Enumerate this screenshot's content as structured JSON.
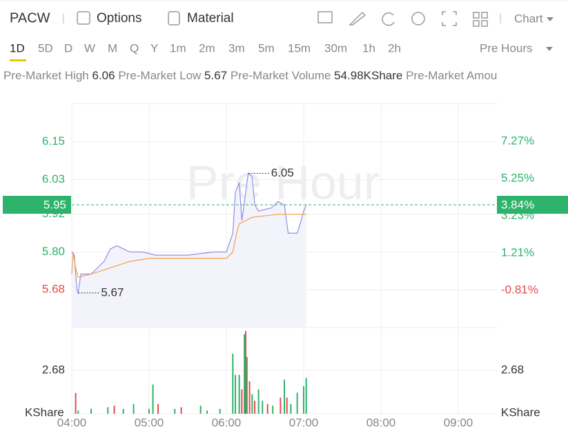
{
  "toolbar": {
    "symbol": "PACW",
    "options": "Options",
    "material": "Material",
    "chart_menu": "Chart"
  },
  "periods": [
    "1D",
    "5D",
    "D",
    "W",
    "M",
    "Q",
    "Y",
    "1m",
    "2m",
    "3m",
    "5m",
    "15m",
    "30m",
    "1h",
    "2h"
  ],
  "selected_period_index": 0,
  "session": "Pre Hours",
  "stats": [
    {
      "label": "Pre-Market High",
      "value": "6.06"
    },
    {
      "label": "Pre-Market Low",
      "value": "5.67"
    },
    {
      "label": "Pre-Market Volume",
      "value": "54.98KShare"
    },
    {
      "label": "Pre-Market Amou"
    }
  ],
  "chart_data": {
    "type": "line",
    "watermark": "Pre Hour",
    "grid": true,
    "up_color": "#2db36b",
    "down_color": "#e64a4a",
    "xlim": [
      "04:00",
      "09:30"
    ],
    "xticks": [
      "04:00",
      "05:00",
      "06:00",
      "07:00",
      "08:00",
      "09:00"
    ],
    "ylim": [
      5.56,
      6.272
    ],
    "yticks": [
      6.15,
      6.03,
      5.92,
      {
        "value": 5.8,
        "label": "5.80"
      },
      5.68
    ],
    "y2lim": [
      -2.83,
      9.33
    ],
    "y2ticks": [
      {
        "value": 7.27,
        "label": "7.27%"
      },
      {
        "value": 5.25,
        "label": "5.25%"
      },
      {
        "value": 3.23,
        "label": "3.23%"
      },
      {
        "value": 1.21,
        "label": "1.21%"
      },
      {
        "value": -0.81,
        "label": "-0.81%"
      }
    ],
    "price": {
      "color": "#8f8fe0",
      "x": [
        "04:00",
        "04:02",
        "04:04",
        "04:05",
        "04:07",
        "04:15",
        "04:20",
        "04:25",
        "04:30",
        "04:35",
        "04:45",
        "04:55",
        "05:05",
        "05:30",
        "05:50",
        "06:00",
        "06:05",
        "06:07",
        "06:10",
        "06:12",
        "06:15",
        "06:17",
        "06:20",
        "06:22",
        "06:25",
        "06:35",
        "06:40",
        "06:45",
        "06:48",
        "06:55",
        "06:58",
        "07:00",
        "07:02"
      ],
      "values": [
        5.8,
        5.79,
        5.68,
        5.67,
        5.73,
        5.73,
        5.75,
        5.77,
        5.81,
        5.82,
        5.8,
        5.8,
        5.79,
        5.79,
        5.8,
        5.8,
        5.86,
        5.99,
        6.02,
        5.9,
        5.99,
        6.05,
        6.04,
        5.95,
        5.93,
        5.94,
        5.96,
        5.95,
        5.86,
        5.86,
        5.9,
        5.93,
        5.95
      ]
    },
    "average": {
      "color": "#f0a04b",
      "x": [
        "04:00",
        "04:01",
        "04:03",
        "04:05",
        "04:15",
        "04:30",
        "04:45",
        "05:00",
        "05:30",
        "06:00",
        "06:05",
        "06:08",
        "06:10",
        "06:20",
        "06:40",
        "07:00",
        "07:02"
      ],
      "values": [
        5.73,
        5.8,
        5.75,
        5.72,
        5.73,
        5.75,
        5.77,
        5.78,
        5.78,
        5.78,
        5.8,
        5.86,
        5.89,
        5.91,
        5.92,
        5.92,
        5.92
      ]
    },
    "volume": {
      "unit": "KShare",
      "ylim": [
        0,
        5.31
      ],
      "yticks": [
        2.68
      ],
      "x": [
        "04:03",
        "04:05",
        "04:15",
        "04:28",
        "04:33",
        "04:40",
        "04:48",
        "05:00",
        "05:03",
        "05:07",
        "05:20",
        "05:25",
        "05:40",
        "05:45",
        "05:55",
        "06:05",
        "06:07",
        "06:10",
        "06:12",
        "06:14",
        "06:15",
        "06:16",
        "06:18",
        "06:20",
        "06:22",
        "06:25",
        "06:28",
        "06:32",
        "06:36",
        "06:42",
        "06:45",
        "06:47",
        "06:50",
        "06:55",
        "07:00",
        "07:02"
      ],
      "values": [
        1.28,
        0.2,
        0.3,
        0.4,
        0.5,
        0.3,
        0.6,
        0.3,
        1.8,
        0.6,
        0.3,
        0.4,
        0.5,
        0.2,
        0.3,
        3.7,
        2.4,
        2.4,
        1.5,
        4.9,
        5.1,
        3.5,
        2.0,
        1.2,
        0.8,
        1.5,
        0.8,
        0.6,
        0.5,
        1.0,
        2.1,
        1.0,
        0.6,
        1.3,
        1.7,
        2.2
      ],
      "colors": [
        "#e64a4a",
        "#2db36b",
        "#2db36b",
        "#2db36b",
        "#e64a4a",
        "#2db36b",
        "#2db36b",
        "#2db36b",
        "#2db36b",
        "#e64a4a",
        "#2db36b",
        "#e64a4a",
        "#2db36b",
        "#2db36b",
        "#2db36b",
        "#2db36b",
        "#2db36b",
        "#2db36b",
        "#e64a4a",
        "#2db36b",
        "#e64a4a",
        "#2db36b",
        "#e64a4a",
        "#2db36b",
        "#e64a4a",
        "#2db36b",
        "#2db36b",
        "#e64a4a",
        "#2db36b",
        "#e64a4a",
        "#2db36b",
        "#e64a4a",
        "#2db36b",
        "#2db36b",
        "#2db36b",
        "#2db36b"
      ]
    },
    "last_price": {
      "value": 5.95,
      "change": {
        "value": 3.84,
        "label": "3.84%"
      }
    },
    "high_annotation": {
      "x": "06:17",
      "value": 6.05
    },
    "low_annotation": {
      "x": "04:05",
      "value": 5.67
    }
  }
}
